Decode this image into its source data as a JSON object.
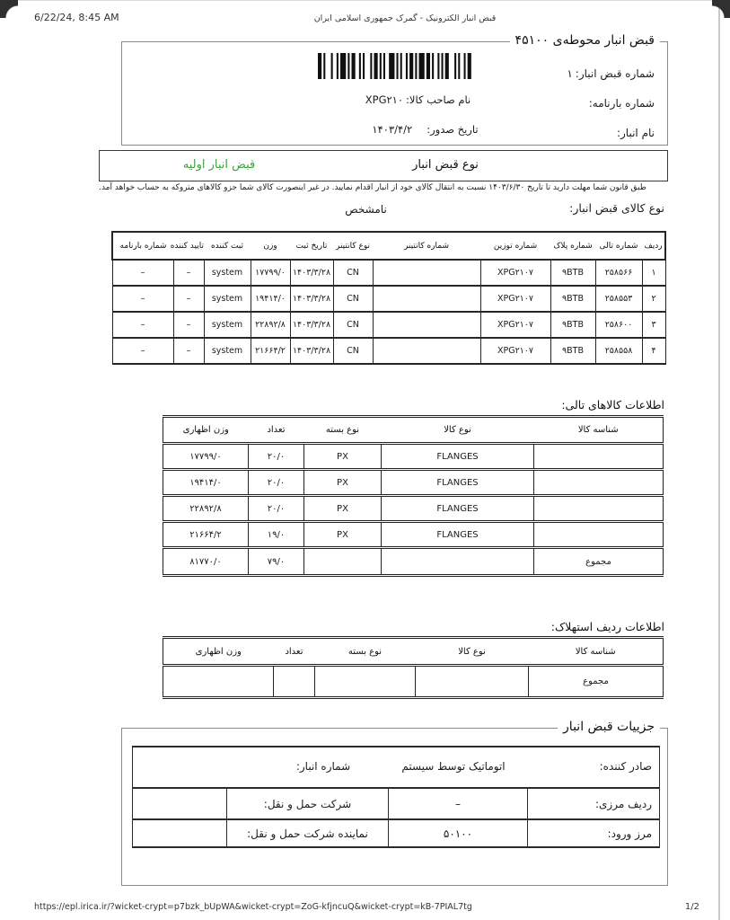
{
  "print_header": {
    "datetime": "6/22/24, 8:45 AM",
    "title": "قبض انبار الکترونیک - گمرک جمهوری اسلامی ایران"
  },
  "receipt": {
    "legend": "قبض انبار محوطه‌ی ۴۵۱۰۰",
    "receipt_no_label": "شماره قبض انبار:",
    "receipt_no_value": "۱",
    "waybill_label": "شماره بارنامه:",
    "waybill_value": "",
    "owner_label": "نام صاحب کالا:",
    "owner_value": "XPG۲۱۰",
    "warehouse_label": "نام انبار:",
    "warehouse_value": "",
    "issue_date_label": "تاریخ صدور:",
    "issue_date_value": "۱۴۰۳/۴/۲"
  },
  "receipt_type": {
    "label": "نوع قبض انبار",
    "value": "قبض انبار اولیه",
    "value_color": "#3BA23B"
  },
  "legal_notice": "طبق قانون شما مهلت دارید تا تاریخ ۱۴۰۳/۶/۳۰ نسبت به انتقال کالای خود از انبار اقدام نمایید. در غیر اینصورت کالای شما جزو کالاهای متروکه به حساب خواهد آمد.",
  "goods_type": {
    "label": "نوع کالای قبض انبار:",
    "value": "نامشخص"
  },
  "tally_table": {
    "headers": [
      "ردیف",
      "شماره تالی",
      "شماره پلاک",
      "شماره توزین",
      "شماره کانتینر",
      "نوع کانتینر",
      "تاریخ ثبت",
      "وزن",
      "ثبت کننده",
      "تایید کننده",
      "شماره بارنامه"
    ],
    "rows": [
      [
        "۱",
        "۲۵۸۵۶۶",
        "۹BTB",
        "XPG۲۱۰۷",
        "",
        "CN",
        "۱۴۰۳/۳/۲۸",
        "۱۷۷۹۹/۰",
        "system",
        "–",
        "–"
      ],
      [
        "۲",
        "۲۵۸۵۵۳",
        "۹BTB",
        "XPG۲۱۰۷",
        "",
        "CN",
        "۱۴۰۳/۳/۲۸",
        "۱۹۴۱۴/۰",
        "system",
        "–",
        "–"
      ],
      [
        "۳",
        "۲۵۸۶۰۰",
        "۹BTB",
        "XPG۲۱۰۷",
        "",
        "CN",
        "۱۴۰۳/۳/۲۸",
        "۲۲۸۹۲/۸",
        "system",
        "–",
        "–"
      ],
      [
        "۴",
        "۲۵۸۵۵۸",
        "۹BTB",
        "XPG۲۱۰۷",
        "",
        "CN",
        "۱۴۰۳/۳/۲۸",
        "۲۱۶۶۴/۲",
        "system",
        "–",
        "–"
      ]
    ]
  },
  "tally_goods": {
    "title": "اطلاعات کالاهای تالی:",
    "headers": [
      "شناسه کالا",
      "نوع کالا",
      "نوع بسته",
      "تعداد",
      "وزن اظهاری"
    ],
    "rows": [
      [
        "",
        "FLANGES",
        "PX",
        "۲۰/۰",
        "۱۷۷۹۹/۰"
      ],
      [
        "",
        "FLANGES",
        "PX",
        "۲۰/۰",
        "۱۹۴۱۴/۰"
      ],
      [
        "",
        "FLANGES",
        "PX",
        "۲۰/۰",
        "۲۲۸۹۲/۸"
      ],
      [
        "",
        "FLANGES",
        "PX",
        "۱۹/۰",
        "۲۱۶۶۴/۲"
      ]
    ],
    "total": {
      "label": "مجموع",
      "goods_type": "",
      "package_type": "",
      "count": "۷۹/۰",
      "weight": "۸۱۷۷۰/۰"
    }
  },
  "depreciation": {
    "title": "اطلاعات ردیف استهلاک:",
    "headers": [
      "شناسه کالا",
      "نوع کالا",
      "نوع بسته",
      "تعداد",
      "وزن اظهاری"
    ],
    "total": {
      "label": "مجموع",
      "goods_type": "",
      "package_type": "",
      "count": "",
      "weight": ""
    }
  },
  "details": {
    "legend": "جزییات قبض انبار",
    "issuer_label": "صادر کننده:",
    "issuer_value": "اتوماتیک توسط سیستم",
    "warehouse_no_label": "شماره انبار:",
    "warehouse_no_value": "",
    "border_row_label": "ردیف مرزی:",
    "border_row_value": "–",
    "carrier_label": "شرکت حمل و نقل:",
    "carrier_value": "",
    "entry_border_label": "مرز ورود:",
    "entry_border_value": "۵۰۱۰۰",
    "carrier_agent_label": "نماینده شرکت حمل و نقل:",
    "carrier_agent_value": ""
  },
  "print_footer": {
    "url": "https://epl.irica.ir/?wicket-crypt=p7bzk_bUpWA&wicket-crypt=ZoG-kfjncuQ&wicket-crypt=kB-7PIAL7tg",
    "page": "1/2"
  }
}
